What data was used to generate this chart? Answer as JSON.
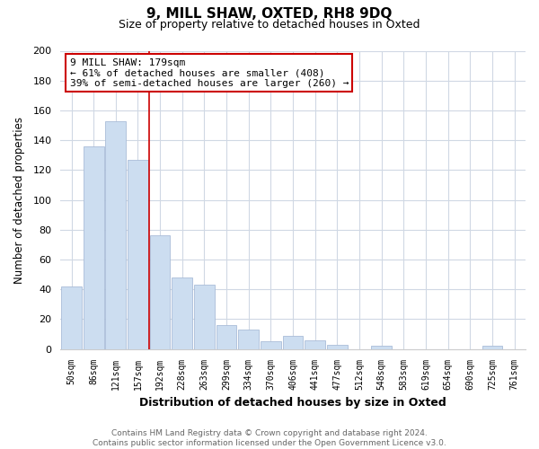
{
  "title": "9, MILL SHAW, OXTED, RH8 9DQ",
  "subtitle": "Size of property relative to detached houses in Oxted",
  "xlabel": "Distribution of detached houses by size in Oxted",
  "ylabel": "Number of detached properties",
  "footer_line1": "Contains HM Land Registry data © Crown copyright and database right 2024.",
  "footer_line2": "Contains public sector information licensed under the Open Government Licence v3.0.",
  "bar_labels": [
    "50sqm",
    "86sqm",
    "121sqm",
    "157sqm",
    "192sqm",
    "228sqm",
    "263sqm",
    "299sqm",
    "334sqm",
    "370sqm",
    "406sqm",
    "441sqm",
    "477sqm",
    "512sqm",
    "548sqm",
    "583sqm",
    "619sqm",
    "654sqm",
    "690sqm",
    "725sqm",
    "761sqm"
  ],
  "bar_values": [
    42,
    136,
    153,
    127,
    76,
    48,
    43,
    16,
    13,
    5,
    9,
    6,
    3,
    0,
    2,
    0,
    0,
    0,
    0,
    2,
    0
  ],
  "bar_color": "#ccddf0",
  "bar_edge_color": "#aabdd8",
  "highlight_line_color": "#cc0000",
  "annotation_line1": "9 MILL SHAW: 179sqm",
  "annotation_line2": "← 61% of detached houses are smaller (408)",
  "annotation_line3": "39% of semi-detached houses are larger (260) →",
  "annotation_box_color": "white",
  "annotation_box_edge": "#cc0000",
  "ylim": [
    0,
    200
  ],
  "yticks": [
    0,
    20,
    40,
    60,
    80,
    100,
    120,
    140,
    160,
    180,
    200
  ],
  "grid_color": "#d0d8e4",
  "background_color": "#ffffff",
  "plot_bg_color": "#ffffff"
}
